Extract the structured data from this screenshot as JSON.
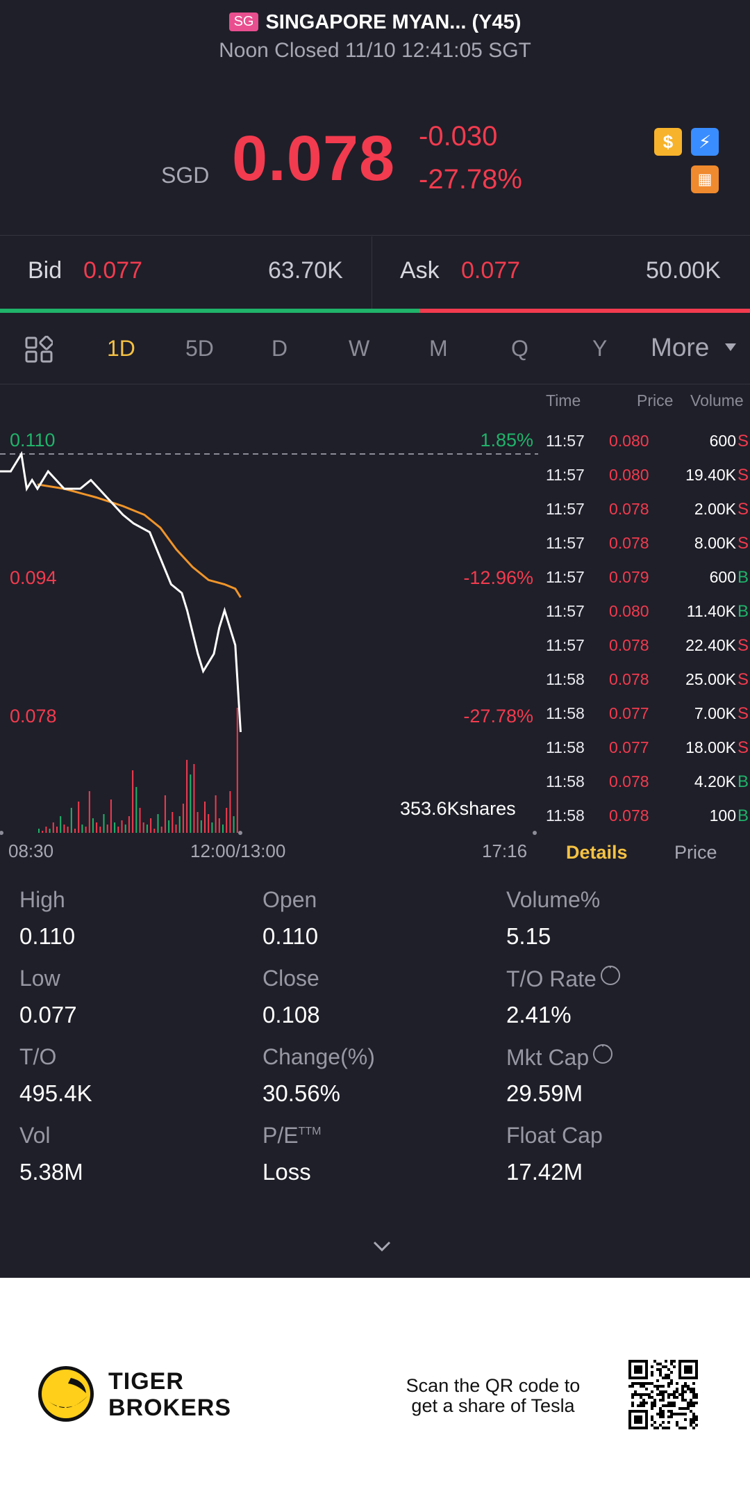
{
  "header": {
    "market_badge": "SG",
    "title": "SINGAPORE MYAN... (Y45)",
    "subtitle": "Noon Closed 11/10 12:41:05 SGT"
  },
  "quote": {
    "currency": "SGD",
    "price": "0.078",
    "change": "-0.030",
    "change_pct": "-27.78%",
    "icons": [
      "dollar-icon",
      "flash-icon",
      "grid-badge-icon"
    ]
  },
  "orderbook": {
    "bid_label": "Bid",
    "bid_price": "0.077",
    "bid_volume": "63.70K",
    "ask_label": "Ask",
    "ask_price": "0.077",
    "ask_volume": "50.00K",
    "bid_share": 0.56
  },
  "tabs": {
    "items": [
      "1D",
      "5D",
      "D",
      "W",
      "M",
      "Q",
      "Y"
    ],
    "active": "1D",
    "more": "More"
  },
  "chart_labels": {
    "y_top": "0.110",
    "y_mid": "0.094",
    "y_bot": "0.078",
    "pct_top": "1.85%",
    "pct_mid": "-12.96%",
    "pct_bot": "-27.78%",
    "volume": "353.6Kshares",
    "x_start": "08:30",
    "x_mid": "12:00/13:00",
    "x_end": "17:16"
  },
  "chart_data": {
    "type": "line",
    "x_range": [
      "08:30",
      "17:16"
    ],
    "ylim": [
      0.078,
      0.11
    ],
    "reference_close": 0.108,
    "price_x": [
      0,
      0.02,
      0.04,
      0.05,
      0.06,
      0.07,
      0.09,
      0.12,
      0.15,
      0.17,
      0.2,
      0.23,
      0.25,
      0.28,
      0.3,
      0.32,
      0.34,
      0.35,
      0.37,
      0.38,
      0.4,
      0.41,
      0.42,
      0.44,
      0.45
    ],
    "price_y": [
      0.108,
      0.108,
      0.11,
      0.106,
      0.107,
      0.106,
      0.108,
      0.106,
      0.106,
      0.107,
      0.105,
      0.103,
      0.102,
      0.101,
      0.098,
      0.095,
      0.094,
      0.092,
      0.087,
      0.085,
      0.087,
      0.09,
      0.092,
      0.088,
      0.078
    ],
    "avg_x": [
      0.07,
      0.12,
      0.18,
      0.23,
      0.27,
      0.3,
      0.33,
      0.36,
      0.39,
      0.42,
      0.44,
      0.45
    ],
    "avg_y": [
      0.1065,
      0.106,
      0.105,
      0.104,
      0.103,
      0.1015,
      0.099,
      0.097,
      0.0955,
      0.095,
      0.0945,
      0.0935
    ],
    "volume_series": {
      "name": "",
      "values": [
        2,
        1,
        3,
        2,
        5,
        3,
        8,
        4,
        3,
        12,
        2,
        15,
        4,
        3,
        20,
        7,
        5,
        3,
        9,
        4,
        16,
        5,
        3,
        6,
        4,
        8,
        30,
        22,
        12,
        5,
        4,
        7,
        2,
        9,
        3,
        18,
        6,
        10,
        4,
        8,
        14,
        35,
        28,
        33,
        10,
        6,
        15,
        9,
        5,
        18,
        7,
        4,
        12,
        20,
        8,
        60
      ],
      "sides": "mixed"
    }
  },
  "trades": {
    "headers": [
      "Time",
      "Price",
      "Volume"
    ],
    "rows": [
      {
        "time": "11:57",
        "price": "0.080",
        "volume": "600",
        "side": "S"
      },
      {
        "time": "11:57",
        "price": "0.080",
        "volume": "19.40K",
        "side": "S"
      },
      {
        "time": "11:57",
        "price": "0.078",
        "volume": "2.00K",
        "side": "S"
      },
      {
        "time": "11:57",
        "price": "0.078",
        "volume": "8.00K",
        "side": "S"
      },
      {
        "time": "11:57",
        "price": "0.079",
        "volume": "600",
        "side": "B"
      },
      {
        "time": "11:57",
        "price": "0.080",
        "volume": "11.40K",
        "side": "B"
      },
      {
        "time": "11:57",
        "price": "0.078",
        "volume": "22.40K",
        "side": "S"
      },
      {
        "time": "11:58",
        "price": "0.078",
        "volume": "25.00K",
        "side": "S"
      },
      {
        "time": "11:58",
        "price": "0.077",
        "volume": "7.00K",
        "side": "S"
      },
      {
        "time": "11:58",
        "price": "0.077",
        "volume": "18.00K",
        "side": "S"
      },
      {
        "time": "11:58",
        "price": "0.078",
        "volume": "4.20K",
        "side": "B"
      },
      {
        "time": "11:58",
        "price": "0.078",
        "volume": "100",
        "side": "B"
      }
    ],
    "tab_details": "Details",
    "tab_price": "Price"
  },
  "stats": {
    "high_label": "High",
    "high": "0.110",
    "open_label": "Open",
    "open": "0.110",
    "volpct_label": "Volume%",
    "volpct": "5.15",
    "low_label": "Low",
    "low": "0.077",
    "close_label": "Close",
    "close": "0.108",
    "torate_label": "T/O Rate",
    "torate": "2.41%",
    "to_label": "T/O",
    "to": "495.4K",
    "change_label": "Change(%)",
    "change": "30.56%",
    "mktcap_label": "Mkt Cap",
    "mktcap": "29.59M",
    "vol_label": "Vol",
    "vol": "5.38M",
    "pe_label": "P/E",
    "pe_sup": "TTM",
    "pe": "Loss",
    "floatcap_label": "Float Cap",
    "floatcap": "17.42M"
  },
  "footer": {
    "brand_line1": "TIGER",
    "brand_line2": "BROKERS",
    "scan_line1": "Scan the QR code to",
    "scan_line2": "get a share of Tesla"
  },
  "colors": {
    "background": "#1f1f29",
    "down": "#f23b4e",
    "up": "#20b36a",
    "accent": "#f5c243",
    "avg_line": "#f0952a"
  }
}
